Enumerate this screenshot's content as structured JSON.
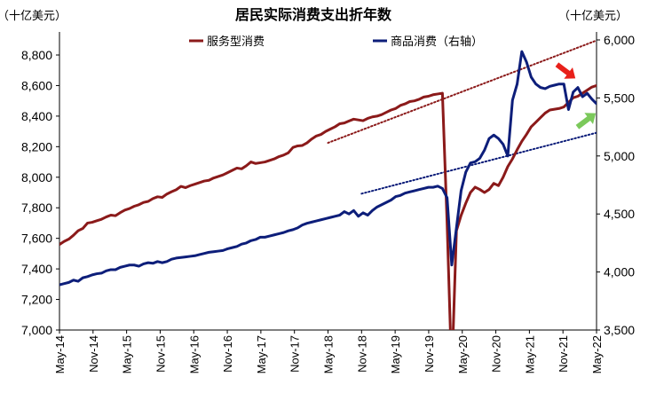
{
  "chart_data": {
    "type": "line",
    "title": "居民实际消费支出折年数",
    "left_unit": "（十亿美元）",
    "right_unit": "（十亿美元）",
    "left_axis": {
      "min": 7000,
      "max": 8900,
      "ticks": [
        7000,
        7200,
        7400,
        7600,
        7800,
        8000,
        8200,
        8400,
        8600,
        8800
      ],
      "tick_labels": [
        "7,000",
        "7,200",
        "7,400",
        "7,600",
        "7,800",
        "8,000",
        "8,200",
        "8,400",
        "8,600",
        "8,800"
      ]
    },
    "right_axis": {
      "min": 3500,
      "max": 6000,
      "ticks": [
        3500,
        4000,
        4500,
        5000,
        5500,
        6000
      ],
      "tick_labels": [
        "3,500",
        "4,000",
        "4,500",
        "5,000",
        "5,500",
        "6,000"
      ]
    },
    "x_tick_labels": [
      "May-14",
      "Nov-14",
      "May-15",
      "Nov-15",
      "May-16",
      "Nov-16",
      "May-17",
      "Nov-17",
      "May-18",
      "Nov-18",
      "May-19",
      "Nov-19",
      "May-20",
      "Nov-20",
      "May-21",
      "Nov-21",
      "May-22"
    ],
    "grid": false,
    "legend_position": "top",
    "series": [
      {
        "name": "服务型消费",
        "axis": "left",
        "color": "#8B1A1A",
        "values": [
          7560,
          7580,
          7595,
          7620,
          7650,
          7665,
          7700,
          7705,
          7715,
          7725,
          7740,
          7752,
          7748,
          7768,
          7785,
          7795,
          7810,
          7820,
          7835,
          7842,
          7860,
          7872,
          7868,
          7890,
          7905,
          7918,
          7940,
          7932,
          7945,
          7955,
          7965,
          7975,
          7980,
          7995,
          8005,
          8015,
          8030,
          8045,
          8060,
          8055,
          8075,
          8100,
          8090,
          8095,
          8100,
          8110,
          8120,
          8135,
          8145,
          8160,
          8195,
          8205,
          8208,
          8225,
          8250,
          8270,
          8280,
          8300,
          8315,
          8330,
          8350,
          8355,
          8368,
          8380,
          8375,
          8370,
          8385,
          8395,
          8400,
          8410,
          8425,
          8440,
          8450,
          8470,
          8480,
          8495,
          8500,
          8510,
          8525,
          8530,
          8540,
          8545,
          8550,
          7700,
          6700,
          7650,
          7750,
          7830,
          7900,
          7935,
          7920,
          7900,
          7920,
          7960,
          7945,
          8000,
          8070,
          8120,
          8180,
          8235,
          8280,
          8330,
          8360,
          8390,
          8420,
          8440,
          8445,
          8450,
          8460,
          8490,
          8520,
          8530,
          8550,
          8570,
          8590,
          8600
        ],
        "trend": [
          {
            "x": "May-18",
            "y": 8225
          },
          {
            "x": "May-22",
            "y": 8895
          }
        ]
      },
      {
        "name": "商品消费（右轴）",
        "axis": "right",
        "color": "#0D1E7A",
        "values": [
          3890,
          3900,
          3910,
          3930,
          3920,
          3950,
          3960,
          3975,
          3985,
          3990,
          4010,
          4020,
          4020,
          4040,
          4050,
          4060,
          4060,
          4050,
          4070,
          4080,
          4075,
          4090,
          4080,
          4090,
          4110,
          4120,
          4125,
          4130,
          4135,
          4140,
          4150,
          4160,
          4170,
          4175,
          4180,
          4185,
          4200,
          4210,
          4220,
          4240,
          4250,
          4270,
          4280,
          4300,
          4300,
          4310,
          4320,
          4330,
          4340,
          4355,
          4365,
          4380,
          4405,
          4420,
          4430,
          4440,
          4450,
          4460,
          4470,
          4480,
          4490,
          4520,
          4500,
          4530,
          4480,
          4510,
          4490,
          4530,
          4560,
          4580,
          4600,
          4620,
          4650,
          4660,
          4680,
          4690,
          4700,
          4710,
          4720,
          4730,
          4730,
          4740,
          4720,
          4640,
          4060,
          4380,
          4700,
          4860,
          4940,
          4950,
          4980,
          5050,
          5150,
          5180,
          5150,
          5100,
          5000,
          5480,
          5620,
          5900,
          5810,
          5680,
          5620,
          5590,
          5580,
          5600,
          5610,
          5620,
          5620,
          5400,
          5550,
          5590,
          5510,
          5540,
          5490,
          5450
        ],
        "trend": [
          {
            "x": "Nov-18",
            "y": 4675
          },
          {
            "x": "May-22",
            "y": 5200
          }
        ]
      }
    ],
    "annotations": [
      {
        "type": "arrow",
        "direction": "down",
        "color": "#E8201A"
      },
      {
        "type": "arrow",
        "direction": "up",
        "color": "#7BC95B"
      }
    ]
  }
}
